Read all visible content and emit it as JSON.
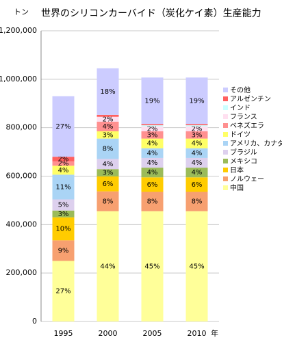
{
  "chart_data": {
    "type": "stacked_bar",
    "title": "世界のシリコンカーバイド（炭化ケイ素）生産能力",
    "y_unit": "トン",
    "x_unit": "年",
    "categories": [
      "1995",
      "2000",
      "2005",
      "2010"
    ],
    "ylim": [
      0,
      1200000
    ],
    "yticks": [
      0,
      {
        "value": 200000,
        "label": "200,000"
      },
      {
        "value": 400000,
        "label": "400,000"
      },
      {
        "value": 600000,
        "label": "600,000"
      },
      {
        "value": 800000,
        "label": "800,000"
      },
      {
        "value": 1000000,
        "label": "1,000,000"
      },
      {
        "value": 1200000,
        "label": "1,200,000"
      }
    ],
    "grid": true,
    "legend": "right",
    "series": [
      {
        "name": "中国",
        "color": "#ffff99",
        "values": [
          250000,
          455000,
          455000,
          455000
        ],
        "share_labels": [
          "27%",
          "44%",
          "45%",
          "45%"
        ]
      },
      {
        "name": "ノルウェー",
        "color": "#f7a070",
        "values": [
          85000,
          82000,
          80000,
          80000
        ],
        "share_labels": [
          "9%",
          "8%",
          "8%",
          "8%"
        ]
      },
      {
        "name": "日本",
        "color": "#ffcc00",
        "values": [
          95000,
          62000,
          60000,
          60000
        ],
        "share_labels": [
          "10%",
          "6%",
          "6%",
          "6%"
        ]
      },
      {
        "name": "メキシコ",
        "color": "#9bbb59",
        "values": [
          28000,
          30000,
          40000,
          40000
        ],
        "share_labels": [
          "3%",
          "3%",
          "4%",
          "4%"
        ]
      },
      {
        "name": "ブラジル",
        "color": "#ddd0ee",
        "values": [
          46000,
          42000,
          40000,
          40000
        ],
        "share_labels": [
          "5%",
          "4%",
          "4%",
          "4%"
        ]
      },
      {
        "name": "アメリカ、カナダ",
        "color": "#aad4f5",
        "values": [
          102000,
          84000,
          40000,
          40000
        ],
        "share_labels": [
          "11%",
          "8%",
          "4%",
          "4%"
        ]
      },
      {
        "name": "ドイツ",
        "color": "#ffff66",
        "values": [
          37000,
          30000,
          40000,
          40000
        ],
        "share_labels": [
          "4%",
          "3%",
          "4%",
          "4%"
        ]
      },
      {
        "name": "ベネズエラ",
        "color": "#ff9090",
        "values": [
          18000,
          40000,
          30000,
          30000
        ],
        "share_labels": [
          "2%",
          "4%",
          "3%",
          "3%"
        ]
      },
      {
        "name": "フランス",
        "color": "#ffe0f0",
        "values": [
          0,
          20000,
          20000,
          20000
        ],
        "share_labels": [
          null,
          "2%",
          "2%",
          "2%"
        ]
      },
      {
        "name": "インド",
        "color": "#ccffff",
        "values": [
          0,
          0,
          5000,
          5000
        ],
        "share_labels": [
          null,
          null,
          null,
          null
        ]
      },
      {
        "name": "アルゼンチン",
        "color": "#ff6060",
        "values": [
          19000,
          8000,
          5000,
          5000
        ],
        "share_labels": [
          "2%",
          null,
          null,
          null
        ]
      },
      {
        "name": "その他",
        "color": "#ccccff",
        "values": [
          250000,
          192000,
          192000,
          192000
        ],
        "share_labels": [
          "27%",
          "18%",
          "19%",
          "19%"
        ]
      }
    ]
  }
}
